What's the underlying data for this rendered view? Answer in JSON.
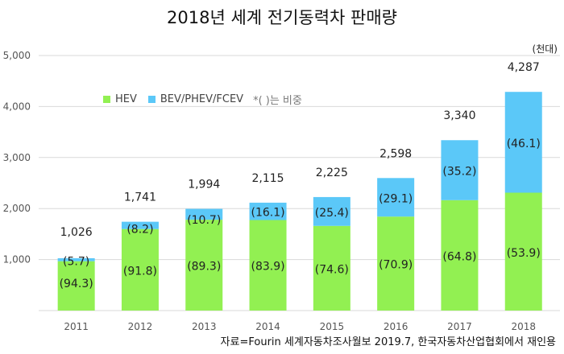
{
  "chart_data": {
    "type": "bar",
    "stacked": true,
    "title": "2018년 세계 전기동력차 판매량",
    "unit": "(천대)",
    "source": "자료=Fourin 세계자동차조사월보  2019.7, 한국자동차산업협회에서 재인용",
    "categories": [
      "2011",
      "2012",
      "2013",
      "2014",
      "2015",
      "2016",
      "2017",
      "2018"
    ],
    "totals": [
      1026,
      1741,
      1994,
      2115,
      2225,
      2598,
      3340,
      4287
    ],
    "total_labels": [
      "1,026",
      "1,741",
      "1,994",
      "2,115",
      "2,225",
      "2,598",
      "3,340",
      "4,287"
    ],
    "series": [
      {
        "name": "HEV",
        "color": "#92F052",
        "values": [
          967.5,
          1598.2,
          1780.6,
          1774.5,
          1659.9,
          1842.0,
          2164.3,
          2310.7
        ],
        "share_labels": [
          "(94.3)",
          "(91.8)",
          "(89.3)",
          "(83.9)",
          "(74.6)",
          "(70.9)",
          "(64.8)",
          "(53.9)"
        ]
      },
      {
        "name": "BEV/PHEV/FCEV",
        "color": "#5BC8F8",
        "values": [
          58.5,
          142.8,
          213.4,
          340.5,
          565.2,
          756.0,
          1175.7,
          1976.3
        ],
        "share_labels": [
          "(5.7)",
          "(8.2)",
          "(10.7)",
          "(16.1)",
          "(25.4)",
          "(29.1)",
          "(35.2)",
          "(46.1)"
        ]
      }
    ],
    "legend_note": "*( )는 비중",
    "ylim": [
      0,
      5000
    ],
    "yticks": [
      1000,
      2000,
      3000,
      4000,
      5000
    ],
    "ytick_labels": [
      "1,000",
      "2,000",
      "3,000",
      "4,000",
      "5,000"
    ],
    "grid": true,
    "legend_position": "top-left"
  }
}
